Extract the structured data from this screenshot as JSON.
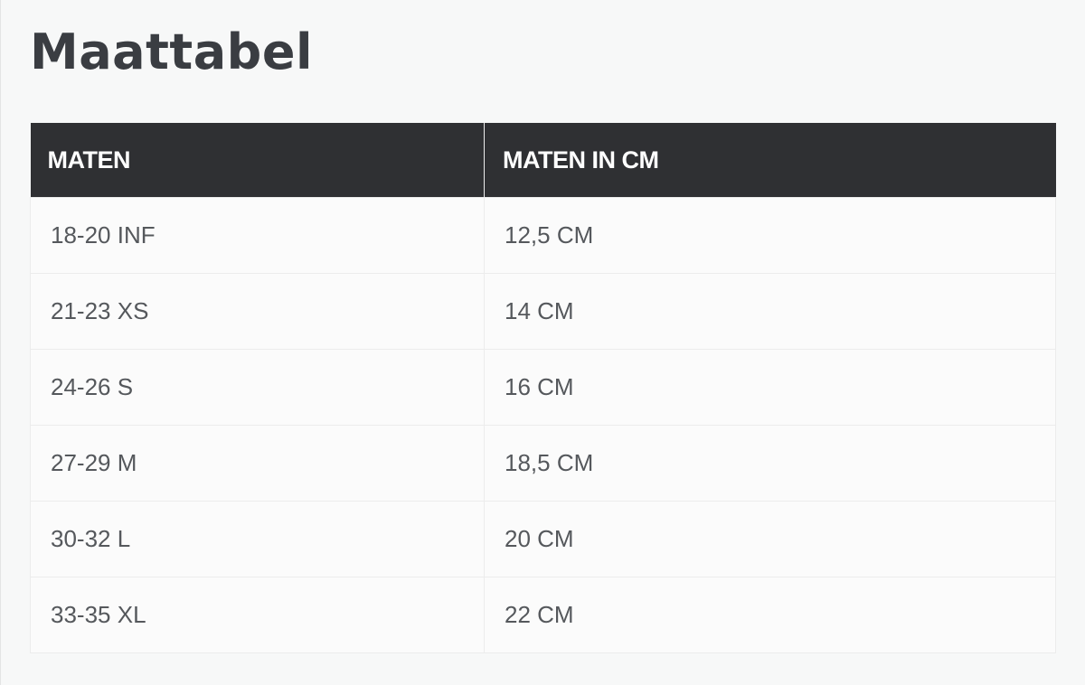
{
  "title": "Maattabel",
  "table": {
    "headers": [
      "MATEN",
      "MATEN IN CM"
    ],
    "rows": [
      [
        "18-20 INF",
        "12,5 CM"
      ],
      [
        "21-23 XS",
        "14 CM"
      ],
      [
        "24-26 S",
        "16 CM"
      ],
      [
        "27-29 M",
        "18,5 CM"
      ],
      [
        "30-32 L",
        "20 CM"
      ],
      [
        "33-35 XL",
        "22 CM"
      ]
    ]
  },
  "colors": {
    "header_bg": "#2f3033",
    "page_bg": "#f7f8f8",
    "text": "#55585c"
  }
}
